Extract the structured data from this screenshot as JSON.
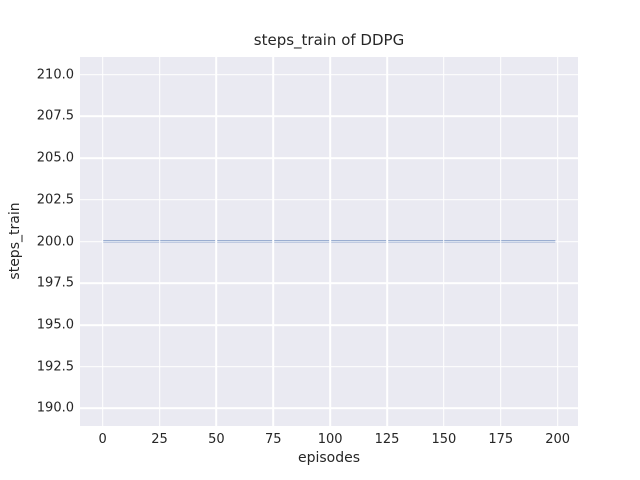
{
  "chart_data": {
    "type": "line",
    "title": "steps_train of DDPG",
    "xlabel": "episodes",
    "ylabel": "steps_train",
    "xlim": [
      -9.95,
      208.95
    ],
    "ylim": [
      188.95,
      211.05
    ],
    "x_ticks": [
      0,
      25,
      50,
      75,
      100,
      125,
      150,
      175,
      200
    ],
    "x_tick_labels": [
      "0",
      "25",
      "50",
      "75",
      "100",
      "125",
      "150",
      "175",
      "200"
    ],
    "y_ticks": [
      190.0,
      192.5,
      195.0,
      197.5,
      200.0,
      202.5,
      205.0,
      207.5,
      210.0
    ],
    "y_tick_labels": [
      "190.0",
      "192.5",
      "195.0",
      "197.5",
      "200.0",
      "202.5",
      "205.0",
      "207.5",
      "210.0"
    ],
    "grid": true,
    "legend": false,
    "series": [
      {
        "name": "steps_train",
        "color": "#4C72B0",
        "line_width": 2,
        "points": [
          [
            0,
            200
          ],
          [
            199,
            200
          ]
        ]
      }
    ],
    "style": {
      "figure_background": "#FFFFFF",
      "axes_background": "#EAEAF2",
      "grid_color": "#FFFFFF",
      "text_color": "#262626"
    }
  }
}
